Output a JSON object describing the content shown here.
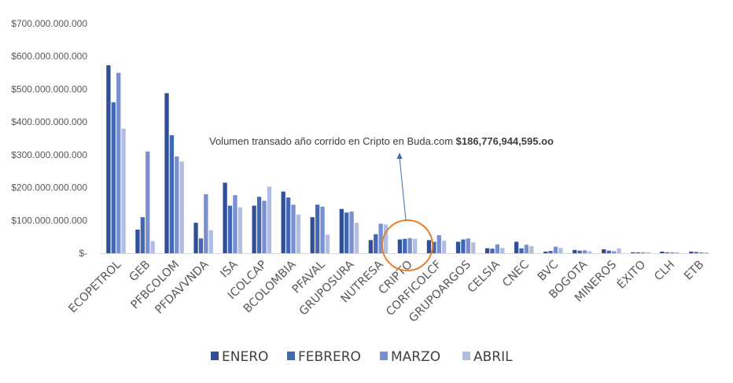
{
  "chart_data": {
    "type": "bar",
    "title": "",
    "xlabel": "",
    "ylabel": "",
    "ylim": [
      0,
      700000000000
    ],
    "y_ticks": [
      "$-",
      "$100.000.000.000",
      "$200.000.000.000",
      "$300.000.000.000",
      "$400.000.000.000",
      "$500.000.000.000",
      "$600.000.000.000",
      "$700.000.000.000"
    ],
    "grid": false,
    "legend_position": "bottom",
    "categories": [
      "ECOPETROL",
      "GEB",
      "PFBCOLOM",
      "PFDAVVNDA",
      "ISA",
      "ICOLCAP",
      "BCOLOMBIA",
      "PFAVAL",
      "GRUPOSURA",
      "NUTRESA",
      "CRIPTO",
      "CORFICOLCF",
      "GRUPOARGOS",
      "CELSIA",
      "CNEC",
      "BVC",
      "BOGOTA",
      "MINEROS",
      "ÉXITO",
      "CLH",
      "ETB"
    ],
    "series": [
      {
        "name": "ENERO",
        "color": "#2f4f97",
        "values": [
          573000000000,
          72000000000,
          488000000000,
          93000000000,
          215000000000,
          145000000000,
          188000000000,
          110000000000,
          135000000000,
          40000000000,
          42000000000,
          40000000000,
          35000000000,
          15000000000,
          35000000000,
          5000000000,
          10000000000,
          12000000000,
          3000000000,
          5000000000,
          5000000000
        ]
      },
      {
        "name": "FEBRERO",
        "color": "#4168b5",
        "values": [
          460000000000,
          110000000000,
          360000000000,
          45000000000,
          145000000000,
          172000000000,
          170000000000,
          148000000000,
          124000000000,
          58000000000,
          44000000000,
          35000000000,
          42000000000,
          14000000000,
          15000000000,
          7000000000,
          8000000000,
          8000000000,
          3000000000,
          3000000000,
          4000000000
        ]
      },
      {
        "name": "MARZO",
        "color": "#7a8fd1",
        "values": [
          550000000000,
          310000000000,
          295000000000,
          180000000000,
          177000000000,
          160000000000,
          148000000000,
          142000000000,
          127000000000,
          90000000000,
          46000000000,
          55000000000,
          45000000000,
          27000000000,
          26000000000,
          20000000000,
          9000000000,
          6000000000,
          3000000000,
          3000000000,
          3000000000
        ]
      },
      {
        "name": "ABRIL",
        "color": "#b0bee3",
        "values": [
          380000000000,
          37000000000,
          280000000000,
          70000000000,
          140000000000,
          203000000000,
          118000000000,
          57000000000,
          93000000000,
          88000000000,
          44000000000,
          38000000000,
          33000000000,
          16000000000,
          22000000000,
          16000000000,
          6000000000,
          15000000000,
          3000000000,
          3000000000,
          3000000000
        ]
      }
    ],
    "annotation": {
      "text": "Volumen transado año corrido en Cripto en Buda.com ",
      "bold_text": "$186,776,944,595.oo",
      "highlight_category": "CRIPTO",
      "circle_color": "#e8812f",
      "arrow_color": "#4468b2"
    }
  }
}
